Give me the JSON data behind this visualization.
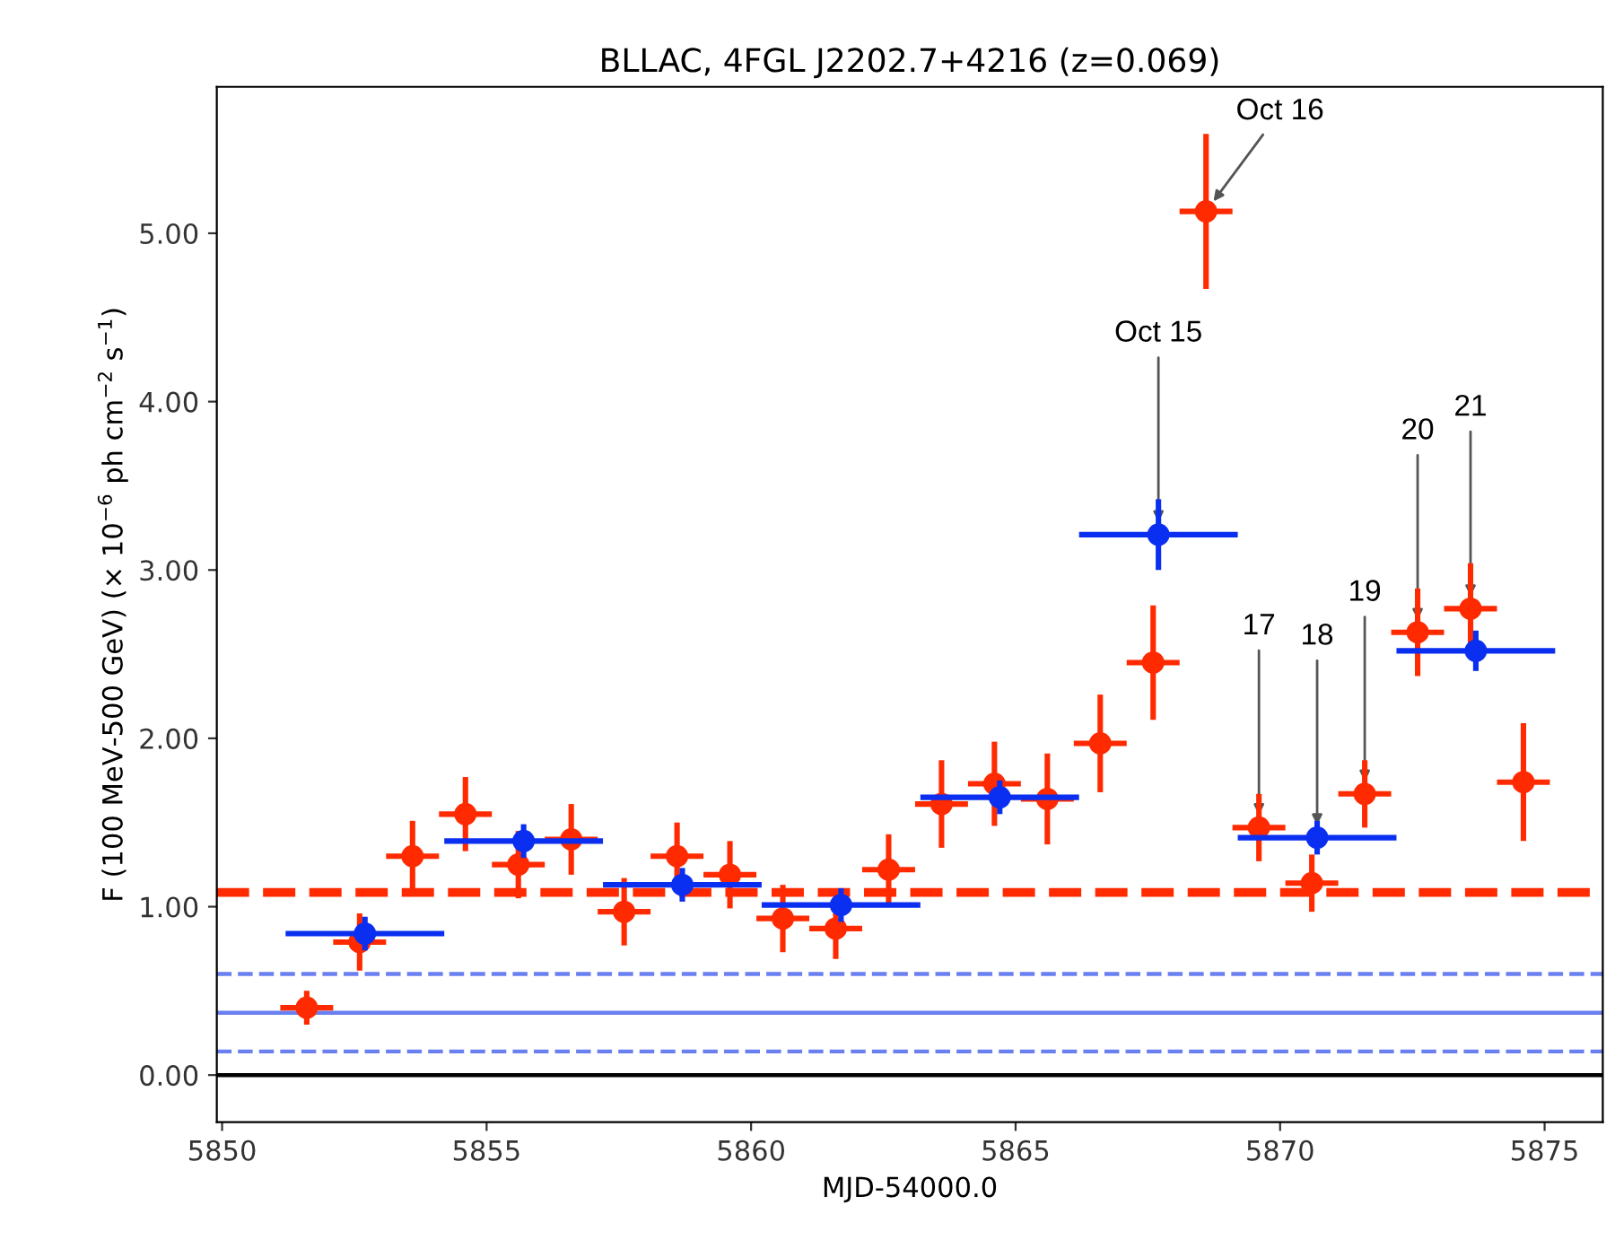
{
  "chart_data": {
    "type": "scatter",
    "title": "BLLAC, 4FGL J2202.7+4216 (z=0.069)",
    "xlabel": "MJD-54000.0",
    "ylabel": "F (100 MeV-500 GeV) (× 10$^{−6}$ ph cm$^{−2}$ s$^{−1}$)",
    "xlim": [
      5849.9,
      5876.1
    ],
    "ylim": [
      -0.28,
      5.87
    ],
    "xticks": [
      5850,
      5855,
      5860,
      5865,
      5870,
      5875
    ],
    "yticks": [
      {
        "value": 0,
        "label": "0.00"
      },
      {
        "value": 1,
        "label": "1.00"
      },
      {
        "value": 2,
        "label": "2.00"
      },
      {
        "value": 3,
        "label": "3.00"
      },
      {
        "value": 4,
        "label": "4.00"
      },
      {
        "value": 5,
        "label": "5.00"
      }
    ],
    "marker": "circle",
    "grid": false,
    "legend": false,
    "series": [
      {
        "color": "#0a2ff0",
        "x": [
          5852.7,
          5855.7,
          5858.7,
          5861.7,
          5864.7,
          5867.7,
          5870.7,
          5873.7
        ],
        "values": [
          0.84,
          1.39,
          1.13,
          1.01,
          1.65,
          3.21,
          1.41,
          2.52
        ],
        "errors": [
          0.1,
          0.1,
          0.1,
          0.1,
          0.1,
          0.21,
          0.1,
          0.12
        ],
        "xerrors": [
          1.5,
          1.5,
          1.5,
          1.5,
          1.5,
          1.5,
          1.5,
          1.5
        ]
      },
      {
        "color": "#ff2a00",
        "x": [
          5851.6,
          5852.6,
          5853.6,
          5854.6,
          5855.6,
          5856.6,
          5857.6,
          5858.6,
          5859.6,
          5860.6,
          5861.6,
          5862.6,
          5863.6,
          5864.6,
          5865.6,
          5866.6,
          5867.6,
          5868.6,
          5869.6,
          5870.6,
          5871.6,
          5872.6,
          5873.6,
          5874.6
        ],
        "values": [
          0.4,
          0.79,
          1.3,
          1.55,
          1.25,
          1.4,
          0.97,
          1.3,
          1.19,
          0.93,
          0.87,
          1.22,
          1.61,
          1.73,
          1.64,
          1.97,
          2.45,
          5.13,
          1.47,
          1.14,
          1.67,
          2.63,
          2.77,
          1.74
        ],
        "errors": [
          0.1,
          0.17,
          0.21,
          0.22,
          0.2,
          0.21,
          0.2,
          0.2,
          0.2,
          0.2,
          0.18,
          0.21,
          0.26,
          0.25,
          0.27,
          0.29,
          0.34,
          0.46,
          0.2,
          0.17,
          0.2,
          0.26,
          0.27,
          0.35
        ],
        "xerrors": [
          0.5,
          0.5,
          0.5,
          0.5,
          0.5,
          0.5,
          0.5,
          0.5,
          0.5,
          0.5,
          0.5,
          0.5,
          0.5,
          0.5,
          0.5,
          0.5,
          0.5,
          0.5,
          0.5,
          0.5,
          0.5,
          0.5,
          0.5,
          0.5
        ]
      }
    ],
    "ref_lines": [
      {
        "axis": "y",
        "value": 0,
        "color": "#000000",
        "line_style": "solid"
      },
      {
        "axis": "y",
        "value": 1.085,
        "color": "#ff2a00",
        "line_style": "dashed"
      },
      {
        "axis": "y",
        "value": 0.37,
        "color": "#6a7ff0",
        "line_style": "solid"
      },
      {
        "axis": "y",
        "value": 0.6,
        "color": "#6a7ff0",
        "line_style": "dashed"
      },
      {
        "axis": "y",
        "value": 0.14,
        "color": "#6a7ff0",
        "line_style": "dashed"
      }
    ],
    "annotations": [
      {
        "text": "Oct 16",
        "x": 5868.6,
        "y": 5.13
      },
      {
        "text": "Oct 15",
        "x": 5867.7,
        "y": 3.21
      },
      {
        "text": "17",
        "x": 5869.6,
        "y": 1.47
      },
      {
        "text": "18",
        "x": 5870.7,
        "y": 1.41
      },
      {
        "text": "19",
        "x": 5871.6,
        "y": 1.67
      },
      {
        "text": "20",
        "x": 5872.6,
        "y": 2.63
      },
      {
        "text": "21",
        "x": 5873.6,
        "y": 2.77
      }
    ]
  }
}
